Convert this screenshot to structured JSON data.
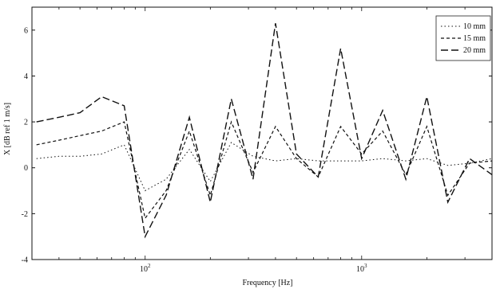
{
  "chart_data": {
    "type": "line",
    "xscale": "log",
    "xlim": [
      30,
      4000
    ],
    "ylim": [
      -4,
      7
    ],
    "xlabel": "Frequency [Hz]",
    "ylabel": "X [dB ref 1 m/s]",
    "grid": false,
    "legend_position": "top-right",
    "x_ticks": [
      {
        "value": 100,
        "base": "10",
        "exp": "2"
      },
      {
        "value": 1000,
        "base": "10",
        "exp": "3"
      }
    ],
    "y_ticks": [
      {
        "value": -4,
        "label": "-4"
      },
      {
        "value": -2,
        "label": "-2"
      },
      {
        "value": 0,
        "label": "0"
      },
      {
        "value": 2,
        "label": "2"
      },
      {
        "value": 4,
        "label": "4"
      },
      {
        "value": 6,
        "label": "6"
      }
    ],
    "x": [
      31.5,
      40,
      50,
      63,
      80,
      100,
      125,
      160,
      200,
      250,
      315,
      400,
      500,
      630,
      800,
      1000,
      1250,
      1600,
      2000,
      2500,
      3150,
      4000
    ],
    "series": [
      {
        "name": "10 mm",
        "dash": "1.5,3",
        "values": [
          0.4,
          0.5,
          0.5,
          0.6,
          1.0,
          -1.0,
          -0.5,
          0.8,
          -0.6,
          1.1,
          0.5,
          0.3,
          0.4,
          0.3,
          0.3,
          0.3,
          0.4,
          0.3,
          0.4,
          0.1,
          0.2,
          0.4
        ]
      },
      {
        "name": "15 mm",
        "dash": "4,3",
        "values": [
          1.0,
          1.2,
          1.4,
          1.6,
          2.0,
          -2.2,
          -1.0,
          1.6,
          -1.2,
          2.0,
          -0.2,
          1.8,
          0.4,
          -0.4,
          1.8,
          0.6,
          1.6,
          -0.3,
          1.8,
          -1.2,
          0.2,
          0.3
        ]
      },
      {
        "name": "20 mm",
        "dash": "9,4",
        "values": [
          2.0,
          2.2,
          2.4,
          3.1,
          2.7,
          -3.0,
          -1.2,
          2.2,
          -1.5,
          3.0,
          -0.5,
          6.3,
          0.6,
          -0.4,
          5.2,
          0.4,
          2.5,
          -0.5,
          3.1,
          -1.5,
          0.4,
          -0.3
        ]
      }
    ]
  }
}
